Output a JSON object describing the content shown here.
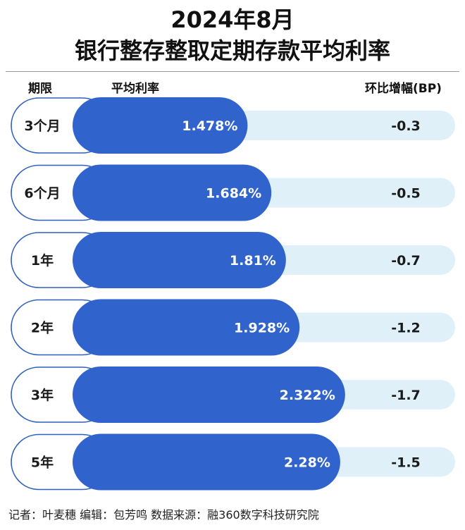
{
  "title_line1": "2024年8月",
  "title_line2": "银行整存整取定期存款平均利率",
  "headers": {
    "term": "期限",
    "avg_rate": "平均利率",
    "mom_change": "环比增幅(BP)"
  },
  "footer": "记者：叶麦穗  编辑：包芳鸣  数据来源：融360数字科技研究院",
  "colors": {
    "bar": "#3064cc",
    "track": "#dff0f9",
    "pill_border": "#2f5fbf",
    "text_dark": "#1a1a1a",
    "text_light": "#ffffff"
  },
  "chart_data": {
    "type": "bar",
    "orientation": "horizontal",
    "categories": [
      "3个月",
      "6个月",
      "1年",
      "2年",
      "3年",
      "5年"
    ],
    "series": [
      {
        "values": [
          1.478,
          1.684,
          1.81,
          1.928,
          2.322,
          2.28
        ]
      }
    ],
    "value_labels": [
      "1.478%",
      "1.684%",
      "1.81%",
      "1.928%",
      "2.322%",
      "2.28%"
    ],
    "change_bp": [
      -0.3,
      -0.5,
      -0.7,
      -1.2,
      -1.7,
      -1.5
    ],
    "change_labels": [
      "-0.3",
      "-0.5",
      "-0.7",
      "-1.2",
      "-1.7",
      "-1.5"
    ]
  }
}
